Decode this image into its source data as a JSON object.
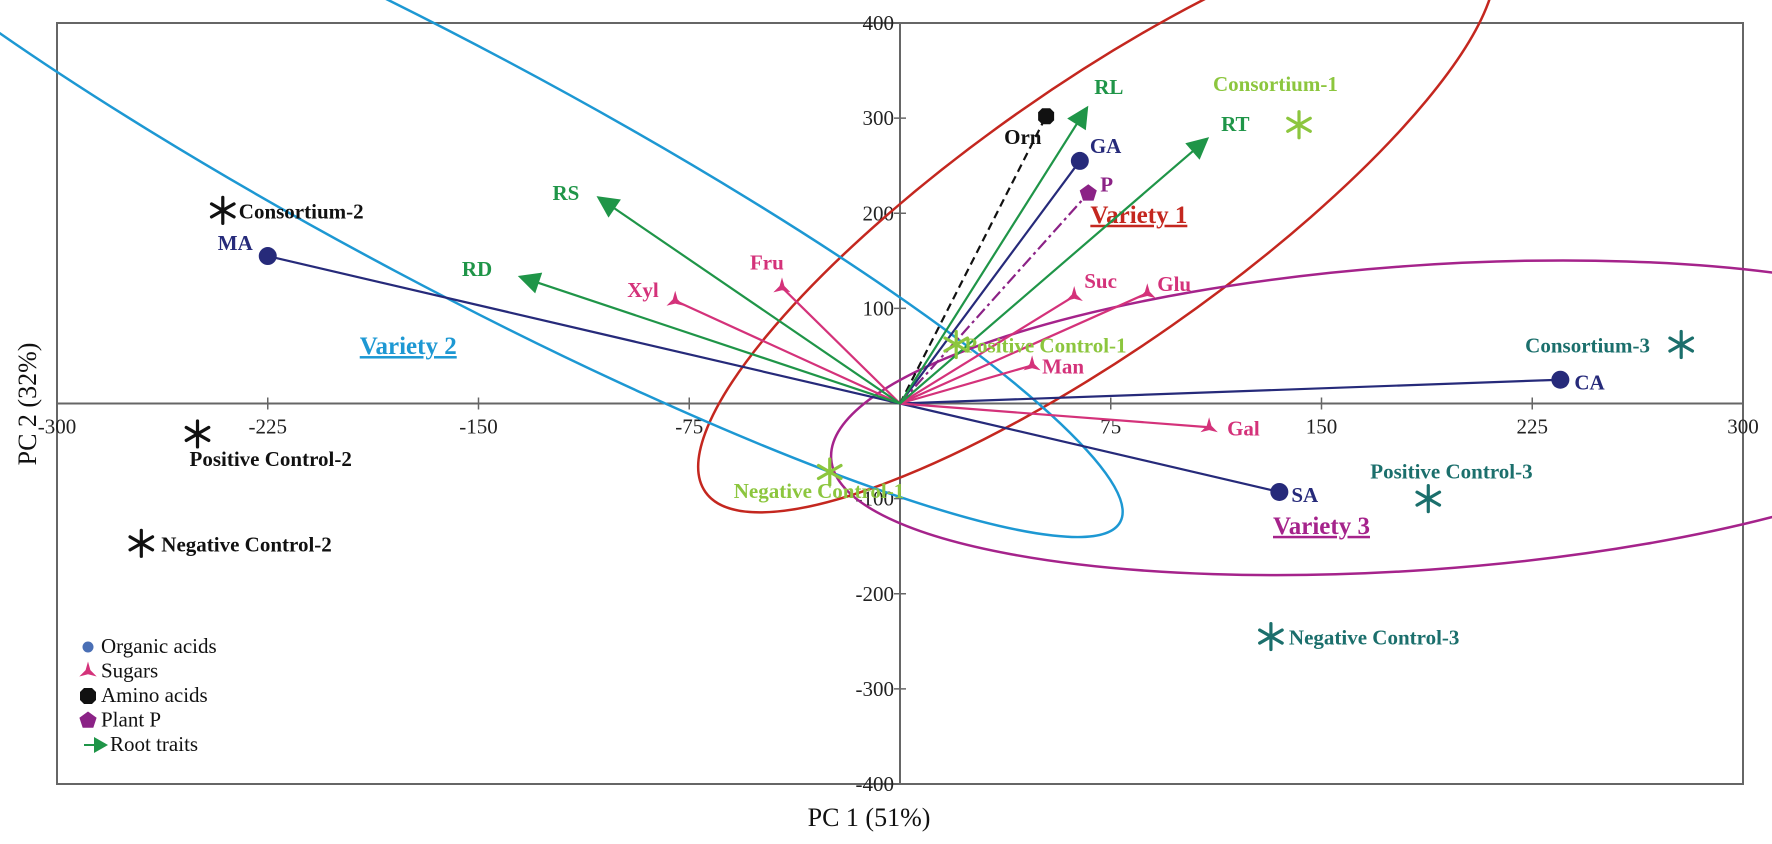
{
  "chart_data": {
    "type": "scatter",
    "subtype": "pca-biplot",
    "xlabel": "PC 1 (51%)",
    "ylabel": "PC 2 (32%)",
    "xlim": [
      -300,
      300
    ],
    "ylim": [
      -400,
      400
    ],
    "xticks": [
      -300,
      -225,
      -150,
      -75,
      75,
      150,
      225,
      300
    ],
    "yticks": [
      400,
      300,
      200,
      100,
      -100,
      -200,
      -300,
      -400
    ],
    "colors": {
      "organic": "#262a7a",
      "sugar": "#d4327a",
      "amino": "#111111",
      "plantp": "#8b2286",
      "root": "#1f9548",
      "ctrl1": "#8cc63e",
      "ctrl2": "#111111",
      "ctrl3": "#1b6f6c",
      "variety1": "#c4271f",
      "variety2": "#1d98d3",
      "variety3": "#a5238b",
      "axis": "#666666"
    },
    "vectors": [
      {
        "label": "MA",
        "category": "organic",
        "x": -225,
        "y": 155,
        "label_dx": -50,
        "label_dy": -6
      },
      {
        "label": "GA",
        "category": "organic",
        "x": 64,
        "y": 255,
        "label_dx": 10,
        "label_dy": -8
      },
      {
        "label": "CA",
        "category": "organic",
        "x": 235,
        "y": 25,
        "label_dx": 14,
        "label_dy": 10
      },
      {
        "label": "SA",
        "category": "organic",
        "x": 135,
        "y": -93,
        "label_dx": 12,
        "label_dy": 10
      },
      {
        "label": "Xyl",
        "category": "sugar",
        "x": -80,
        "y": 108,
        "label_dx": -48,
        "label_dy": -4
      },
      {
        "label": "Fru",
        "category": "sugar",
        "x": -42,
        "y": 122,
        "label_dx": -32,
        "label_dy": -18
      },
      {
        "label": "Suc",
        "category": "sugar",
        "x": 62,
        "y": 113,
        "label_dx": 10,
        "label_dy": -8
      },
      {
        "label": "Glu",
        "category": "sugar",
        "x": 88,
        "y": 116,
        "label_dx": 10,
        "label_dy": -2
      },
      {
        "label": "Man",
        "category": "sugar",
        "x": 47,
        "y": 40,
        "label_dx": 10,
        "label_dy": 8
      },
      {
        "label": "Gal",
        "category": "sugar",
        "x": 110,
        "y": -25,
        "label_dx": 18,
        "label_dy": 8
      },
      {
        "label": "Orn",
        "category": "amino",
        "x": 52,
        "y": 302,
        "label_dx": -42,
        "label_dy": 28
      },
      {
        "label": "P",
        "category": "plantp",
        "x": 67,
        "y": 221,
        "label_dx": 12,
        "label_dy": -2
      },
      {
        "label": "RL",
        "category": "root",
        "x": 67,
        "y": 313,
        "label_dx": 6,
        "label_dy": -12
      },
      {
        "label": "RT",
        "category": "root",
        "x": 110,
        "y": 280,
        "label_dx": 12,
        "label_dy": -6
      },
      {
        "label": "RS",
        "category": "root",
        "x": -108,
        "y": 218,
        "label_dx": -44,
        "label_dy": 4
      },
      {
        "label": "RD",
        "category": "root",
        "x": -136,
        "y": 134,
        "label_dx": -56,
        "label_dy": 0
      }
    ],
    "samples": [
      {
        "label": "Consortium-1",
        "group": "ctrl1",
        "x": 142,
        "y": 293,
        "label_dx": -86,
        "label_dy": -34
      },
      {
        "label": "Positive Control-1",
        "group": "ctrl1",
        "x": 20,
        "y": 62,
        "label_dx": 8,
        "label_dy": 8
      },
      {
        "label": "Negative Control-1",
        "group": "ctrl1",
        "x": -25,
        "y": -72,
        "label_dx": -96,
        "label_dy": 26
      },
      {
        "label": "Consortium-2",
        "group": "ctrl2",
        "x": -241,
        "y": 203,
        "label_dx": 16,
        "label_dy": 8
      },
      {
        "label": "Positive Control-2",
        "group": "ctrl2",
        "x": -250,
        "y": -32,
        "label_dx": -8,
        "label_dy": 32
      },
      {
        "label": "Negative Control-2",
        "group": "ctrl2",
        "x": -270,
        "y": -147,
        "label_dx": 20,
        "label_dy": 8
      },
      {
        "label": "Consortium-3",
        "group": "ctrl3",
        "x": 278,
        "y": 62,
        "label_dx": -156,
        "label_dy": 8
      },
      {
        "label": "Positive Control-3",
        "group": "ctrl3",
        "x": 188,
        "y": -100,
        "label_dx": -58,
        "label_dy": -20
      },
      {
        "label": "Negative Control-3",
        "group": "ctrl3",
        "x": 132,
        "y": -245,
        "label_dx": 18,
        "label_dy": 8
      }
    ],
    "groups": [
      {
        "label": "Variety 1",
        "color": "variety1",
        "cx": 70,
        "cy": 195,
        "rx": 170,
        "ry": 138,
        "rotation": -35,
        "label_x": 85,
        "label_y": 190
      },
      {
        "label": "Variety 2",
        "color": "variety2",
        "cx": -160,
        "cy": 250,
        "rx": 270,
        "ry": 125,
        "rotation": 28,
        "label_x": -175,
        "label_y": 52
      },
      {
        "label": "Variety 3",
        "color": "variety3",
        "cx": 185,
        "cy": -15,
        "rx": 210,
        "ry": 160,
        "rotation": -4,
        "label_x": 150,
        "label_y": -137
      }
    ],
    "legend": {
      "position": "bottom-left",
      "items": [
        {
          "label": "Organic acids",
          "category": "organic"
        },
        {
          "label": "Sugars",
          "category": "sugar"
        },
        {
          "label": "Amino acids",
          "category": "amino"
        },
        {
          "label": "Plant P",
          "category": "plantp"
        },
        {
          "label": "Root traits",
          "category": "root"
        }
      ]
    }
  }
}
